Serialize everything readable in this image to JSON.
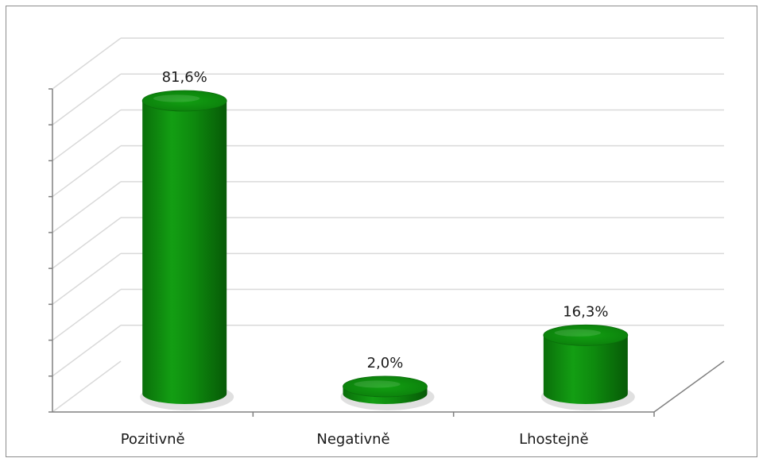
{
  "chart_data": {
    "type": "bar",
    "style": "3d-cylinder",
    "categories": [
      "Pozitivně",
      "Negativně",
      "Lhostejně"
    ],
    "values": [
      81.6,
      2.0,
      16.3
    ],
    "data_labels": [
      "81,6%",
      "2,0%",
      "16,3%"
    ],
    "ylim": [
      0,
      90
    ],
    "y_gridline_step": 10,
    "y_tick_labels_shown": false,
    "grid": true,
    "legend": "none",
    "bar_color": "#0d8a0d",
    "title": "",
    "xlabel": "",
    "ylabel": ""
  }
}
